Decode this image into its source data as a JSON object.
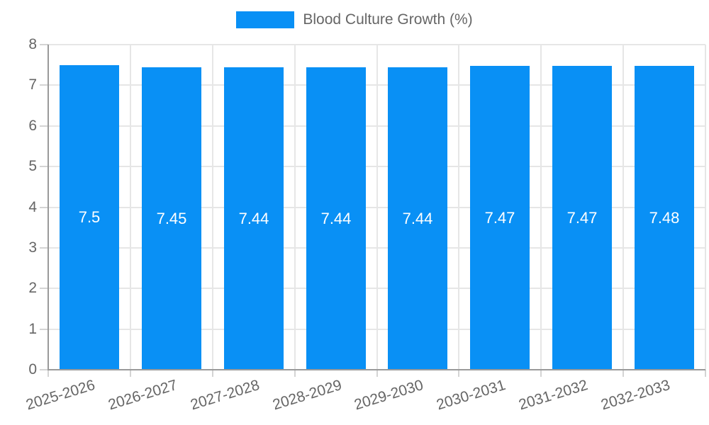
{
  "chart_data": {
    "type": "bar",
    "title": "Blood Culture Growth (%)",
    "categories": [
      "2025-2026",
      "2026-2027",
      "2027-2028",
      "2028-2029",
      "2029-2030",
      "2030-2031",
      "2031-2032",
      "2032-2033"
    ],
    "series": [
      {
        "name": "Blood Culture Growth (%)",
        "values": [
          7.5,
          7.45,
          7.44,
          7.44,
          7.44,
          7.47,
          7.47,
          7.48
        ]
      }
    ],
    "value_labels": [
      "7.5",
      "7.45",
      "7.44",
      "7.44",
      "7.44",
      "7.47",
      "7.47",
      "7.48"
    ],
    "xlabel": "",
    "ylabel": "",
    "ylim": [
      0,
      8
    ],
    "yticks": [
      0,
      1,
      2,
      3,
      4,
      5,
      6,
      7,
      8
    ],
    "grid": true,
    "legend_position": "top"
  },
  "legend": {
    "label": "Blood Culture Growth (%)"
  },
  "colors": {
    "bar": "#0990F5",
    "grid": "#E6E6E6",
    "axis": "#9A9A9A",
    "tick": "#D4D4D4",
    "tick_text": "#666666",
    "legend_text": "#666666",
    "value_text": "#FFFFFF",
    "background": "#FFFFFF"
  }
}
